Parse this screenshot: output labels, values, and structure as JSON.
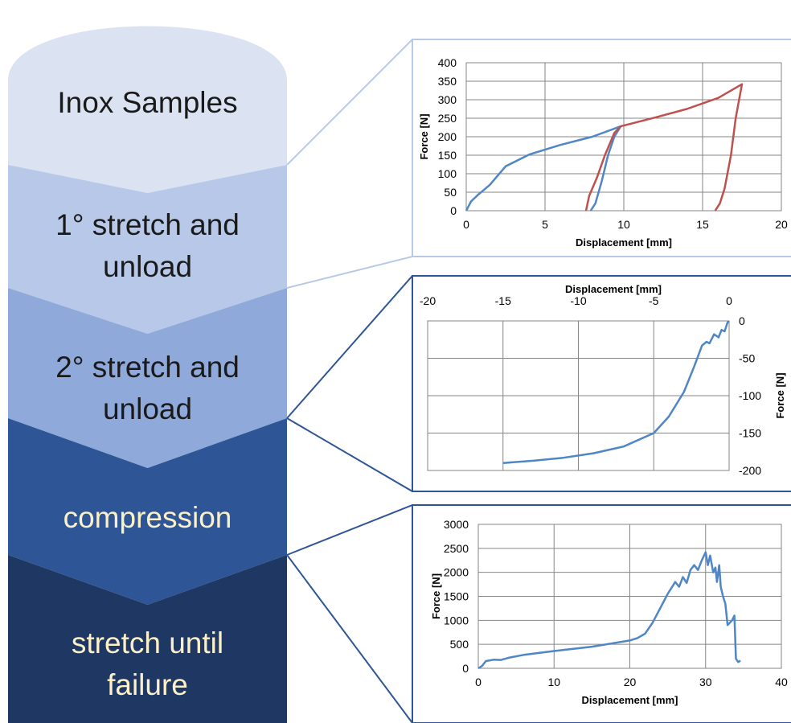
{
  "steps": [
    {
      "lines": [
        "Inox Samples"
      ],
      "color": "#dbe3f2",
      "text_color": "#1a1a1a"
    },
    {
      "lines": [
        "1° stretch and",
        "unload"
      ],
      "color": "#b7c8e8",
      "text_color": "#1a1a1a"
    },
    {
      "lines": [
        "2° stretch and",
        "unload"
      ],
      "color": "#8ea9da",
      "text_color": "#1a1a1a"
    },
    {
      "lines": [
        "compression"
      ],
      "color": "#2e5596",
      "text_color": "#fbf0c8"
    },
    {
      "lines": [
        "stretch until",
        "failure"
      ],
      "color": "#1f3763",
      "text_color": "#fbf0c8"
    }
  ],
  "connector_colors": {
    "light": "#b7c8e8",
    "dark": "#2e5596"
  },
  "chart_data": [
    {
      "type": "line",
      "xlabel": "Displacement [mm]",
      "ylabel": "Force [N]",
      "xlim": [
        0,
        20
      ],
      "ylim": [
        0,
        400
      ],
      "xticks": [
        "0",
        "5",
        "10",
        "15",
        "20"
      ],
      "yticks": [
        "0",
        "50",
        "100",
        "150",
        "200",
        "250",
        "300",
        "350",
        "400"
      ],
      "frame_color": "#b7c8e8",
      "series": [
        {
          "color": "#4f86c6",
          "points": [
            [
              0,
              0
            ],
            [
              0.3,
              25
            ],
            [
              0.8,
              45
            ],
            [
              1.5,
              70
            ],
            [
              2.5,
              120
            ],
            [
              4,
              152
            ],
            [
              6,
              178
            ],
            [
              8,
              200
            ],
            [
              9.8,
              228
            ],
            [
              9.4,
              200
            ],
            [
              9,
              150
            ],
            [
              8.6,
              80
            ],
            [
              8.2,
              20
            ],
            [
              7.9,
              0
            ]
          ]
        },
        {
          "color": "#c0504d",
          "points": [
            [
              7.6,
              0
            ],
            [
              7.8,
              40
            ],
            [
              8.3,
              90
            ],
            [
              8.8,
              150
            ],
            [
              9.4,
              210
            ],
            [
              9.8,
              228
            ],
            [
              12,
              252
            ],
            [
              14,
              275
            ],
            [
              16,
              305
            ],
            [
              17.5,
              342
            ],
            [
              17.1,
              250
            ],
            [
              16.8,
              150
            ],
            [
              16.4,
              60
            ],
            [
              16.1,
              20
            ],
            [
              15.8,
              0
            ]
          ]
        }
      ]
    },
    {
      "type": "line",
      "xlabel": "Displacement [mm]",
      "ylabel": "Force [N]",
      "xlim": [
        -20,
        0
      ],
      "ylim": [
        -200,
        0
      ],
      "xticks": [
        "-20",
        "-15",
        "-10",
        "-5",
        "0"
      ],
      "yticks": [
        "0",
        "-50",
        "-100",
        "-150",
        "-200"
      ],
      "frame_color": "#2e5596",
      "series": [
        {
          "color": "#4f86c6",
          "points": [
            [
              -15,
              -190
            ],
            [
              -13,
              -187
            ],
            [
              -11,
              -183
            ],
            [
              -9,
              -177
            ],
            [
              -7,
              -168
            ],
            [
              -5,
              -150
            ],
            [
              -4,
              -128
            ],
            [
              -3,
              -95
            ],
            [
              -2.3,
              -60
            ],
            [
              -1.8,
              -33
            ],
            [
              -1.5,
              -28
            ],
            [
              -1.3,
              -30
            ],
            [
              -1.0,
              -18
            ],
            [
              -0.7,
              -22
            ],
            [
              -0.5,
              -12
            ],
            [
              -0.3,
              -14
            ],
            [
              -0.1,
              -2
            ],
            [
              0,
              0
            ]
          ]
        }
      ]
    },
    {
      "type": "line",
      "xlabel": "Displacement [mm]",
      "ylabel": "Force [N]",
      "xlim": [
        0,
        40
      ],
      "ylim": [
        0,
        3000
      ],
      "xticks": [
        "0",
        "10",
        "20",
        "30",
        "40"
      ],
      "yticks": [
        "0",
        "500",
        "1000",
        "1500",
        "2000",
        "2500",
        "3000"
      ],
      "frame_color": "#2e5596",
      "series": [
        {
          "color": "#4f86c6",
          "points": [
            [
              0,
              0
            ],
            [
              0.5,
              50
            ],
            [
              1,
              150
            ],
            [
              2,
              180
            ],
            [
              3,
              175
            ],
            [
              4,
              220
            ],
            [
              6,
              280
            ],
            [
              10,
              360
            ],
            [
              15,
              450
            ],
            [
              20,
              580
            ],
            [
              21,
              630
            ],
            [
              22,
              720
            ],
            [
              23,
              950
            ],
            [
              24,
              1250
            ],
            [
              25,
              1550
            ],
            [
              26,
              1800
            ],
            [
              26.5,
              1700
            ],
            [
              27,
              1900
            ],
            [
              27.5,
              1780
            ],
            [
              28,
              2050
            ],
            [
              28.5,
              2150
            ],
            [
              29,
              2050
            ],
            [
              29.5,
              2250
            ],
            [
              30,
              2420
            ],
            [
              30.3,
              2150
            ],
            [
              30.6,
              2350
            ],
            [
              31,
              2000
            ],
            [
              31.3,
              2100
            ],
            [
              31.5,
              1800
            ],
            [
              31.8,
              2150
            ],
            [
              32,
              1700
            ],
            [
              32.3,
              1500
            ],
            [
              32.6,
              1350
            ],
            [
              32.9,
              900
            ],
            [
              33.2,
              950
            ],
            [
              33.5,
              1000
            ],
            [
              33.8,
              1100
            ],
            [
              34.0,
              200
            ],
            [
              34.3,
              130
            ],
            [
              34.6,
              160
            ]
          ]
        }
      ]
    }
  ]
}
